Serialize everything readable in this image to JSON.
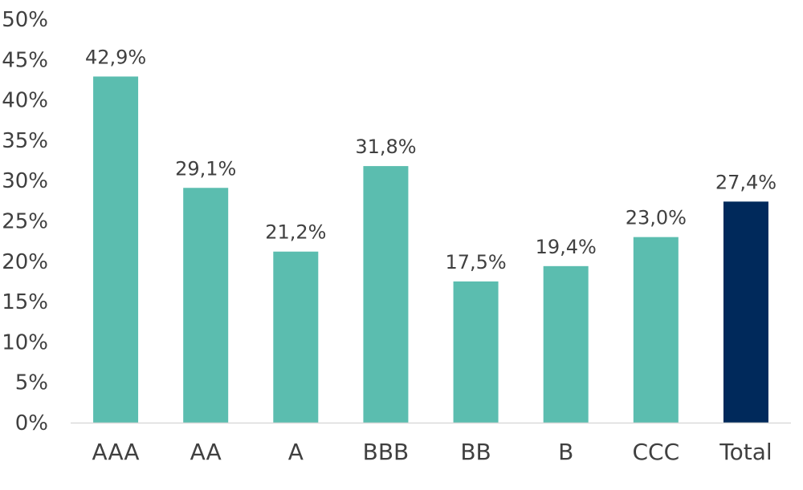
{
  "chart_data": {
    "type": "bar",
    "categories": [
      "AAA",
      "AA",
      "A",
      "BBB",
      "BB",
      "B",
      "CCC",
      "Total"
    ],
    "values": [
      42.9,
      29.1,
      21.2,
      31.8,
      17.5,
      19.4,
      23.0,
      27.4
    ],
    "data_labels": [
      "42,9%",
      "29,1%",
      "21,2%",
      "31,8%",
      "17,5%",
      "19,4%",
      "23,0%",
      "27,4%"
    ],
    "y_ticks": [
      "0%",
      "5%",
      "10%",
      "15%",
      "20%",
      "25%",
      "30%",
      "35%",
      "40%",
      "45%",
      "50%"
    ],
    "ylim": [
      0,
      50
    ],
    "grid": false,
    "legend": "none",
    "colors": {
      "default_bar": "#5BBDAF",
      "highlight_bar": "#00295B",
      "axis_line": "#D9D9D9",
      "text": "#404040"
    },
    "highlight_category": "Total"
  }
}
